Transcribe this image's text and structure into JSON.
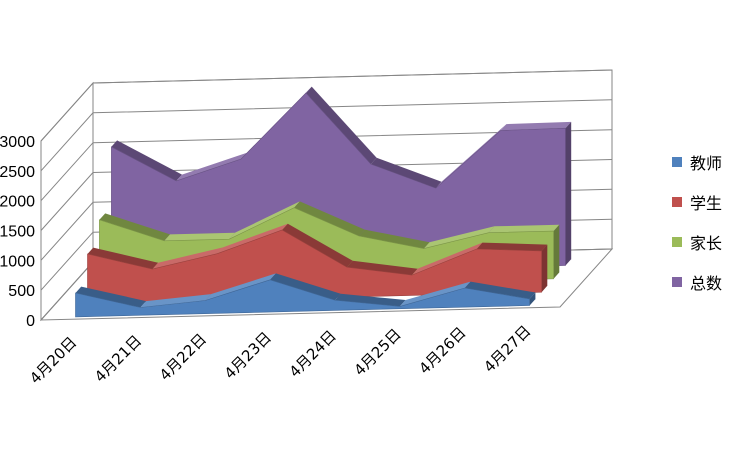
{
  "chart_data": {
    "type": "area",
    "style": "3d-stacked-depth",
    "title": "",
    "xlabel": "",
    "ylabel": "",
    "ylim": [
      0,
      3000
    ],
    "yticks": [
      0,
      500,
      1000,
      1500,
      2000,
      2500,
      3000
    ],
    "categories": [
      "4月20日",
      "4月21日",
      "4月22日",
      "4月23日",
      "4月24日",
      "4月25日",
      "4月26日",
      "4月27日"
    ],
    "grid": true,
    "legend_position": "right",
    "series": [
      {
        "name": "教师",
        "color": "#4F81BD",
        "values": [
          400,
          130,
          220,
          540,
          170,
          40,
          320,
          110
        ]
      },
      {
        "name": "学生",
        "color": "#C0504D",
        "values": [
          830,
          550,
          780,
          1150,
          500,
          340,
          750,
          690
        ]
      },
      {
        "name": "家长",
        "color": "#9BBB59",
        "values": [
          1180,
          800,
          800,
          1300,
          800,
          560,
          800,
          800
        ]
      },
      {
        "name": "总数",
        "color": "#8064A2",
        "values": [
          2180,
          1580,
          1920,
          3000,
          1780,
          1350,
          2290,
          2300
        ]
      }
    ]
  }
}
